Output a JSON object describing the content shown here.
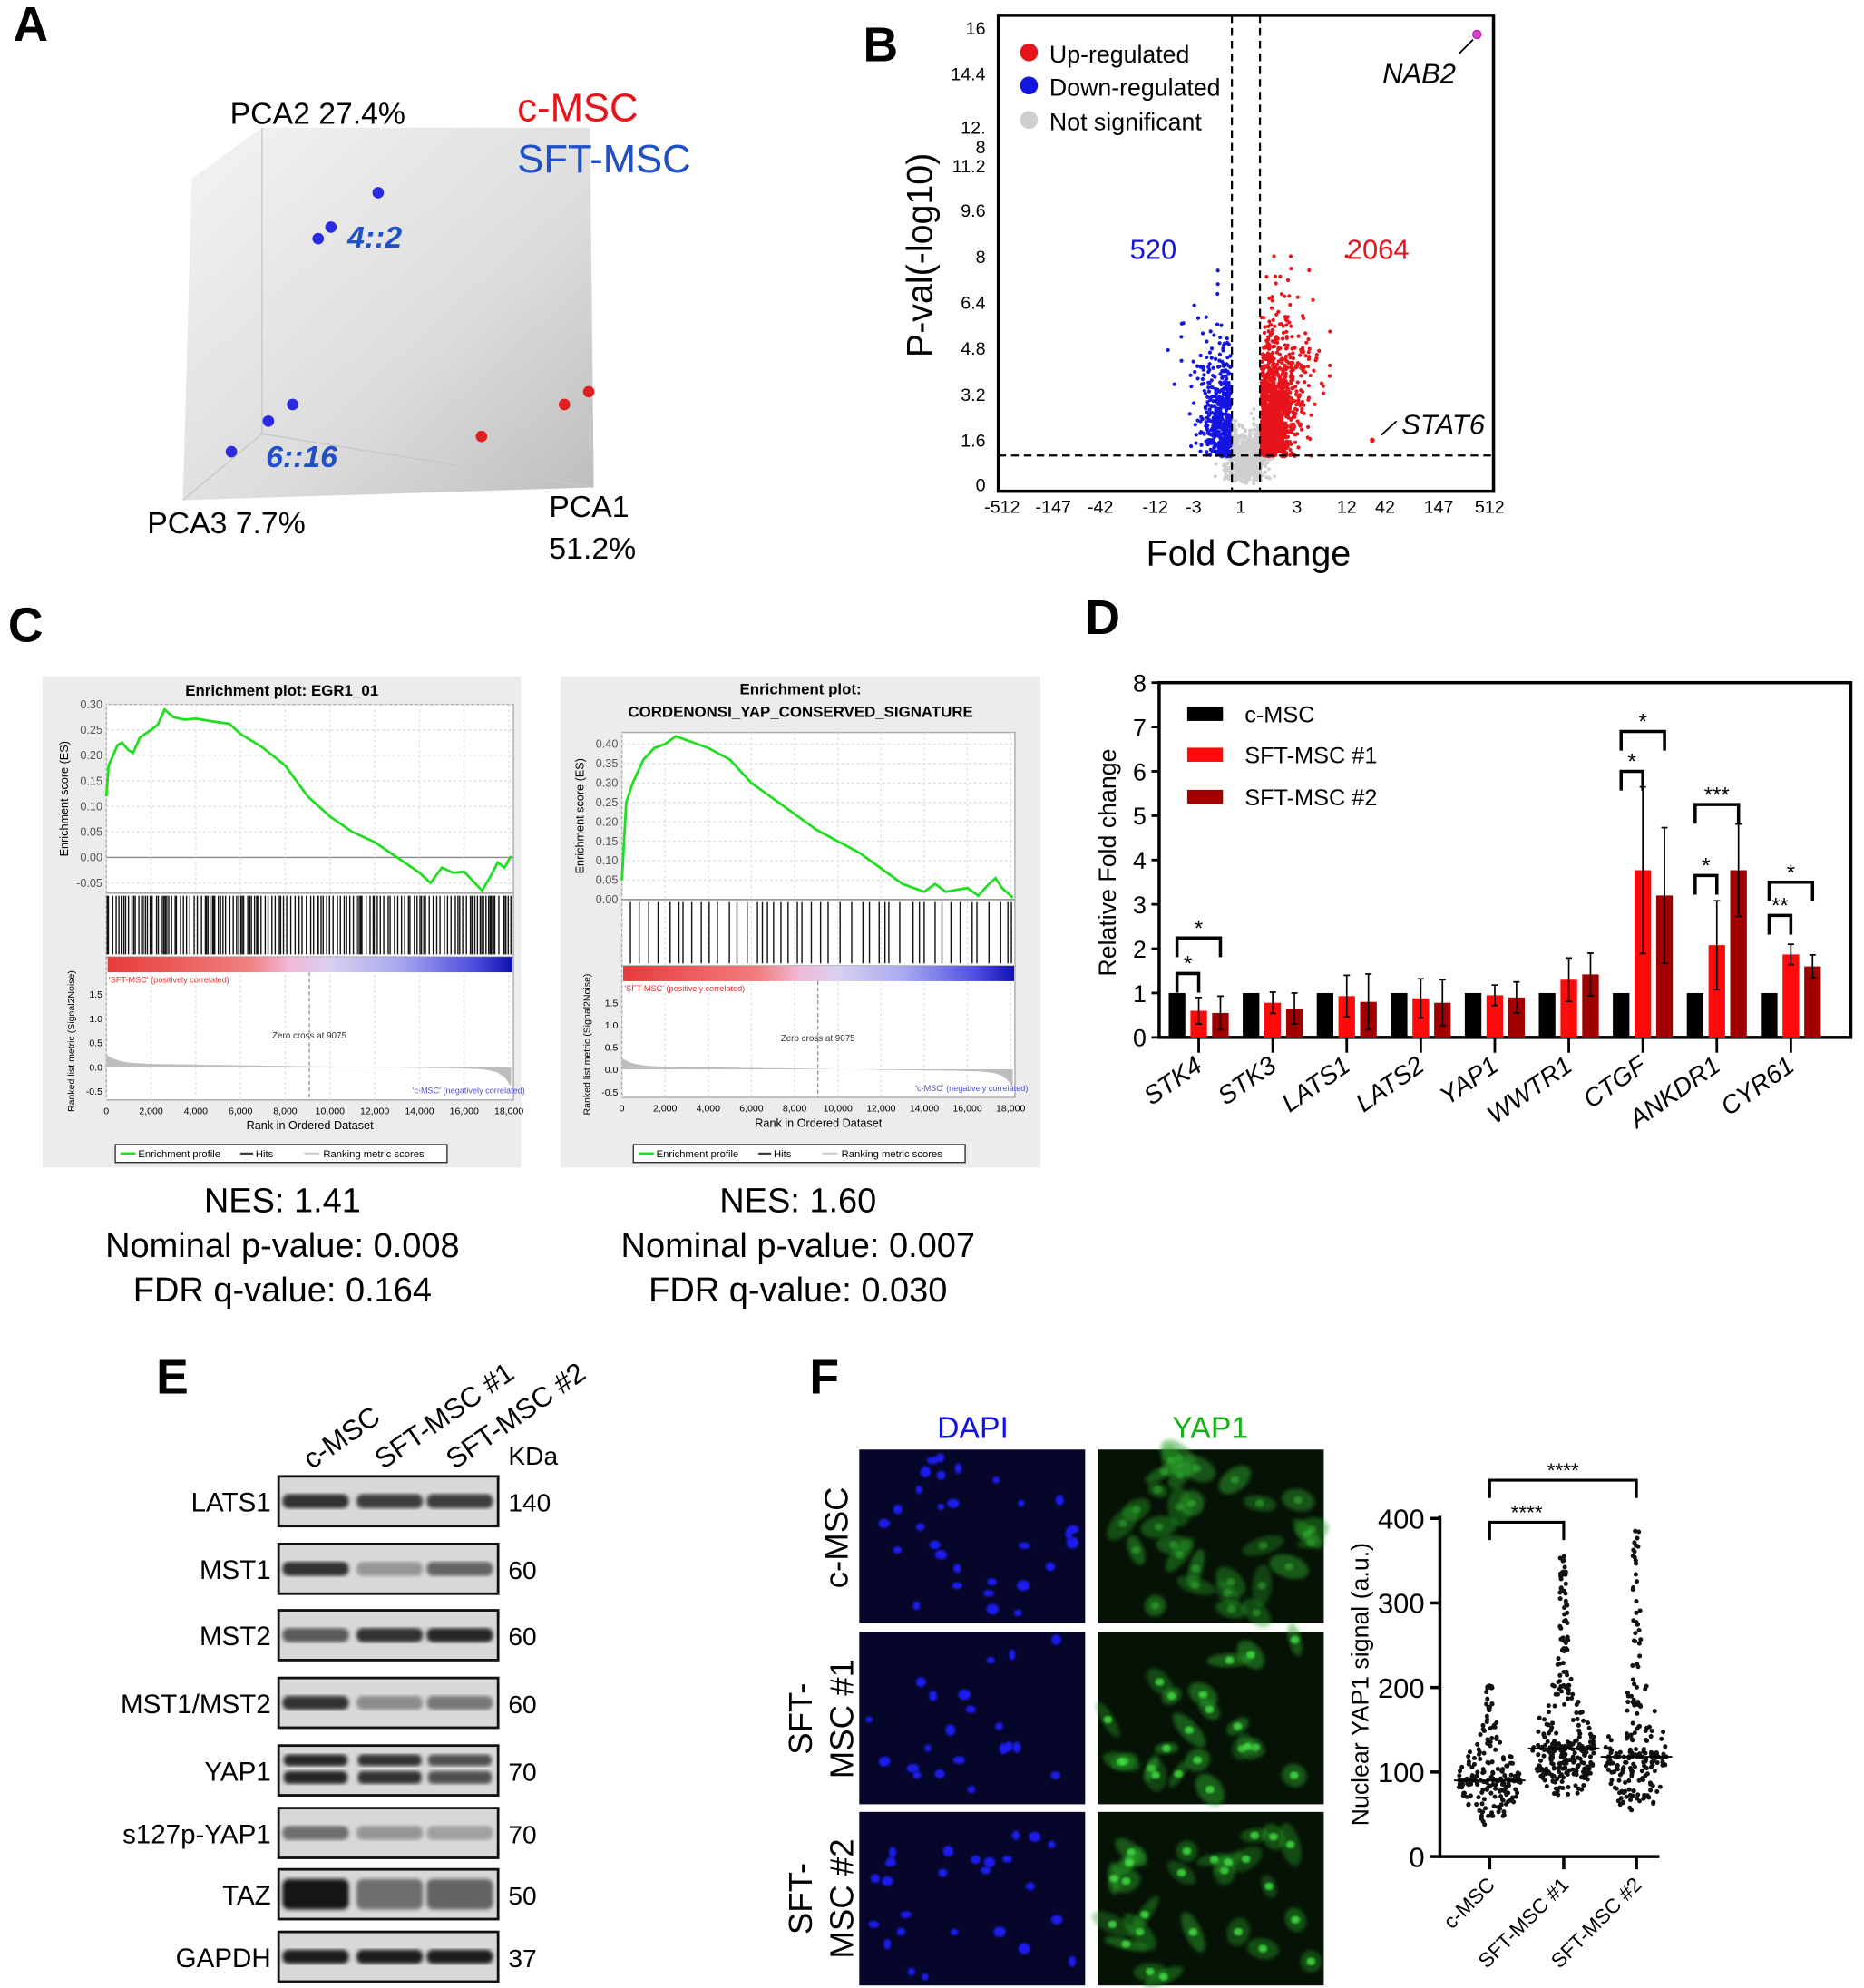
{
  "panel_labels": {
    "A": "A",
    "B": "B",
    "C": "C",
    "D": "D",
    "E": "E",
    "F": "F"
  },
  "chart_data": [
    {
      "type": "scatter",
      "panel": "A",
      "axes": {
        "pca1": "PCA1",
        "pca1_pct": "51.2%",
        "pca2": "PCA2 27.4%",
        "pca3": "PCA3 7.7%"
      },
      "legend": [
        {
          "name": "c-MSC",
          "color": "#e8141c"
        },
        {
          "name": "SFT-MSC",
          "color": "#1f4fc9"
        }
      ],
      "annotations": [
        "4::2",
        "6::16"
      ],
      "point_counts": {
        "c-MSC": 3,
        "SFT-MSC": 6
      }
    },
    {
      "type": "scatter",
      "panel": "B",
      "ylabel": "P-val(-log10)",
      "xlabel": "Fold Change",
      "yticks": [
        "0",
        "1.6",
        "3.2",
        "4.8",
        "6.4",
        "8",
        "9.6",
        "11.2",
        "12.\n8",
        "14.4",
        "16"
      ],
      "ytick_values": [
        0,
        1.6,
        3.2,
        4.8,
        6.4,
        8,
        9.6,
        11.2,
        12.8,
        14.4,
        16
      ],
      "xticks": [
        "-512",
        "-147",
        "-42",
        "-12",
        "-3",
        "1",
        "3",
        "12",
        "42",
        "147",
        "512"
      ],
      "ylim": [
        0,
        16
      ],
      "pvalue_threshold": 1.0,
      "legend": [
        {
          "name": "Up-regulated",
          "color": "#e8141c"
        },
        {
          "name": "Down-regulated",
          "color": "#1515e0"
        },
        {
          "name": "Not significant",
          "color": "#cfcfcf"
        }
      ],
      "counts": {
        "down": "520",
        "up": "2064"
      },
      "labeled_genes": [
        {
          "name": "NAB2",
          "fold_change": 450,
          "neg_log10_p": 15.6,
          "color": "#e040d0"
        },
        {
          "name": "STAT6",
          "fold_change": 30,
          "neg_log10_p": 1.6,
          "color": "#e8141c"
        }
      ]
    },
    {
      "type": "line",
      "panel": "C",
      "title": "Enrichment plot: EGR1_01",
      "ylabel": "Enrichment score (ES)",
      "ylabel2": "Ranked list metric (Signal2Noise)",
      "xlabel": "Rank in Ordered Dataset",
      "yticks": [
        "0.30",
        "0.25",
        "0.20",
        "0.15",
        "0.10",
        "0.05",
        "0.00",
        "-0.05"
      ],
      "ylim": [
        -0.07,
        0.3
      ],
      "metric_ticks": [
        "1.5",
        "1.0",
        "0.5",
        "0.0",
        "-0.5"
      ],
      "xticks": [
        "0",
        "2,000",
        "4,000",
        "6,000",
        "8,000",
        "10,000",
        "12,000",
        "14,000",
        "16,000",
        "18,000"
      ],
      "xlim": [
        0,
        18200
      ],
      "es_curve": [
        [
          0,
          0.12
        ],
        [
          100,
          0.18
        ],
        [
          300,
          0.2
        ],
        [
          500,
          0.22
        ],
        [
          700,
          0.225
        ],
        [
          1000,
          0.21
        ],
        [
          1200,
          0.205
        ],
        [
          1500,
          0.235
        ],
        [
          2000,
          0.25
        ],
        [
          2300,
          0.26
        ],
        [
          2600,
          0.29
        ],
        [
          3000,
          0.275
        ],
        [
          3500,
          0.27
        ],
        [
          4000,
          0.272
        ],
        [
          5000,
          0.265
        ],
        [
          5500,
          0.262
        ],
        [
          6000,
          0.242
        ],
        [
          7000,
          0.215
        ],
        [
          8000,
          0.18
        ],
        [
          9000,
          0.12
        ],
        [
          10000,
          0.08
        ],
        [
          11000,
          0.05
        ],
        [
          12000,
          0.03
        ],
        [
          13000,
          0.0
        ],
        [
          14000,
          -0.03
        ],
        [
          14500,
          -0.05
        ],
        [
          15000,
          -0.02
        ],
        [
          15500,
          -0.03
        ],
        [
          16000,
          -0.028
        ],
        [
          16800,
          -0.065
        ],
        [
          17200,
          -0.035
        ],
        [
          17500,
          -0.01
        ],
        [
          17800,
          -0.02
        ],
        [
          18100,
          0.003
        ]
      ],
      "zero_cross": "Zero cross at 9075",
      "pos_label": "'SFT-MSC' (positively correlated)",
      "neg_label": "'c-MSC' (negatively correlated)",
      "legend": [
        "Enrichment profile",
        "Hits",
        "Ranking metric scores"
      ],
      "stats": {
        "nes": "NES: 1.41",
        "pval": "Nominal p-value: 0.008",
        "fdr": "FDR q-value: 0.164"
      }
    },
    {
      "type": "line",
      "panel": "C",
      "title": "Enrichment plot:",
      "title2": "CORDENONSI_YAP_CONSERVED_SIGNATURE",
      "ylabel": "Enrichment score (ES)",
      "ylabel2": "Ranked list metric (Signal2Noise)",
      "xlabel": "Rank in Ordered Dataset",
      "yticks": [
        "0.40",
        "0.35",
        "0.30",
        "0.25",
        "0.20",
        "0.15",
        "0.10",
        "0.05",
        "0.00"
      ],
      "ylim": [
        0,
        0.42
      ],
      "metric_ticks": [
        "1.5",
        "1.0",
        "0.5",
        "0.0",
        "-0.5"
      ],
      "xticks": [
        "0",
        "2,000",
        "4,000",
        "6,000",
        "8,000",
        "10,000",
        "12,000",
        "14,000",
        "16,000",
        "18,000"
      ],
      "xlim": [
        0,
        18200
      ],
      "es_curve": [
        [
          0,
          0.05
        ],
        [
          200,
          0.25
        ],
        [
          500,
          0.3
        ],
        [
          1000,
          0.36
        ],
        [
          1500,
          0.39
        ],
        [
          2000,
          0.4
        ],
        [
          2500,
          0.42
        ],
        [
          3000,
          0.41
        ],
        [
          4000,
          0.39
        ],
        [
          5000,
          0.36
        ],
        [
          6000,
          0.3
        ],
        [
          7000,
          0.26
        ],
        [
          8000,
          0.22
        ],
        [
          9000,
          0.18
        ],
        [
          10000,
          0.15
        ],
        [
          11000,
          0.12
        ],
        [
          12000,
          0.08
        ],
        [
          13000,
          0.04
        ],
        [
          14000,
          0.02
        ],
        [
          14500,
          0.04
        ],
        [
          15000,
          0.02
        ],
        [
          16000,
          0.03
        ],
        [
          16500,
          0.01
        ],
        [
          17000,
          0.04
        ],
        [
          17300,
          0.055
        ],
        [
          17600,
          0.03
        ],
        [
          18100,
          0.005
        ]
      ],
      "zero_cross": "Zero cross at 9075",
      "pos_label": "'SFT-MSC' (positively correlated)",
      "neg_label": "'c-MSC' (negatively correlated)",
      "legend": [
        "Enrichment profile",
        "Hits",
        "Ranking metric scores"
      ],
      "stats": {
        "nes": "NES: 1.60",
        "pval": "Nominal p-value: 0.007",
        "fdr": "FDR q-value: 0.030"
      }
    },
    {
      "type": "bar",
      "panel": "D",
      "ylabel": "Relative Fold change",
      "ylim": [
        0,
        8
      ],
      "yticks": [
        "0",
        "1",
        "2",
        "3",
        "4",
        "5",
        "6",
        "7",
        "8"
      ],
      "categories": [
        "STK4",
        "STK3",
        "LATS1",
        "LATS2",
        "YAP1",
        "WWTR1",
        "CTGF",
        "ANKDR1",
        "CYR61"
      ],
      "series": [
        {
          "name": "c-MSC",
          "color": "#000000",
          "values": [
            1,
            1,
            1,
            1,
            1,
            1,
            1,
            1,
            1
          ],
          "errors": [
            0,
            0,
            0,
            0,
            0,
            0,
            0,
            0,
            0
          ]
        },
        {
          "name": "SFT-MSC #1",
          "color": "#ff0a0a",
          "values": [
            0.6,
            0.78,
            0.93,
            0.88,
            0.95,
            1.3,
            3.77,
            2.08,
            1.87
          ],
          "errors": [
            0.3,
            0.24,
            0.47,
            0.44,
            0.23,
            0.49,
            1.88,
            1.0,
            0.23
          ]
        },
        {
          "name": "SFT-MSC #2",
          "color": "#a00000",
          "values": [
            0.55,
            0.65,
            0.8,
            0.78,
            0.9,
            1.42,
            3.2,
            3.77,
            1.6
          ],
          "errors": [
            0.38,
            0.35,
            0.63,
            0.52,
            0.35,
            0.48,
            1.53,
            1.04,
            0.26
          ]
        }
      ],
      "significance": [
        {
          "category": "STK4",
          "from": 0,
          "to": 1,
          "level": 1.44,
          "label": "*"
        },
        {
          "category": "STK4",
          "from": 0,
          "to": 2,
          "level": 2.24,
          "label": "*"
        },
        {
          "category": "CTGF",
          "from": 0,
          "to": 1,
          "level": 6.0,
          "label": "*"
        },
        {
          "category": "CTGF",
          "from": 0,
          "to": 2,
          "level": 6.9,
          "label": "*"
        },
        {
          "category": "ANKDR1",
          "from": 0,
          "to": 1,
          "level": 3.65,
          "label": "*"
        },
        {
          "category": "ANKDR1",
          "from": 0,
          "to": 2,
          "level": 5.25,
          "label": "***"
        },
        {
          "category": "CYR61",
          "from": 0,
          "to": 1,
          "level": 2.75,
          "label": "**"
        },
        {
          "category": "CYR61",
          "from": 0,
          "to": 2,
          "level": 3.5,
          "label": "*"
        }
      ]
    },
    {
      "type": "table",
      "panel": "E",
      "lanes": [
        "c-MSC",
        "SFT-MSC #1",
        "SFT-MSC #2"
      ],
      "unit_label": "KDa",
      "rows": [
        {
          "protein": "LATS1",
          "kda": "140",
          "intensity": [
            0.85,
            0.8,
            0.8
          ]
        },
        {
          "protein": "MST1",
          "kda": "60",
          "intensity": [
            0.85,
            0.35,
            0.6
          ]
        },
        {
          "protein": "MST2",
          "kda": "60",
          "intensity": [
            0.65,
            0.85,
            0.9
          ]
        },
        {
          "protein": "MST1/MST2",
          "kda": "60",
          "intensity": [
            0.85,
            0.4,
            0.5
          ]
        },
        {
          "protein": "YAP1",
          "kda": "70",
          "intensity": [
            0.9,
            0.85,
            0.7
          ]
        },
        {
          "protein": "s127p-YAP1",
          "kda": "70",
          "intensity": [
            0.55,
            0.35,
            0.3
          ]
        },
        {
          "protein": "TAZ",
          "kda": "50",
          "intensity": [
            1.0,
            0.55,
            0.6
          ]
        },
        {
          "protein": "GAPDH",
          "kda": "37",
          "intensity": [
            0.95,
            0.95,
            0.95
          ]
        }
      ]
    },
    {
      "type": "scatter",
      "panel": "F",
      "channels": [
        {
          "name": "DAPI",
          "color": "#1010e0"
        },
        {
          "name": "YAP1",
          "color": "#18b018"
        }
      ],
      "row_labels": [
        [
          "c-MSC"
        ],
        [
          "SFT-",
          "MSC #1"
        ],
        [
          "SFT-",
          "MSC #2"
        ]
      ],
      "ylabel": "Nuclear YAP1 signal (a.u.)",
      "ylim": [
        0,
        400
      ],
      "yticks": [
        "0",
        "100",
        "200",
        "300",
        "400"
      ],
      "categories": [
        "c-MSC",
        "SFT-MSC #1",
        "SFT-MSC #2"
      ],
      "groups": [
        {
          "name": "c-MSC",
          "median": 90,
          "min": 38,
          "max": 202,
          "q1": 72,
          "q3": 118
        },
        {
          "name": "SFT-MSC #1",
          "median": 128,
          "min": 73,
          "max": 355,
          "q1": 100,
          "q3": 165
        },
        {
          "name": "SFT-MSC #2",
          "median": 118,
          "min": 55,
          "max": 385,
          "q1": 92,
          "q3": 160
        }
      ],
      "significance": [
        {
          "from": 0,
          "to": 1,
          "label": "****"
        },
        {
          "from": 0,
          "to": 2,
          "label": "****"
        }
      ]
    }
  ]
}
